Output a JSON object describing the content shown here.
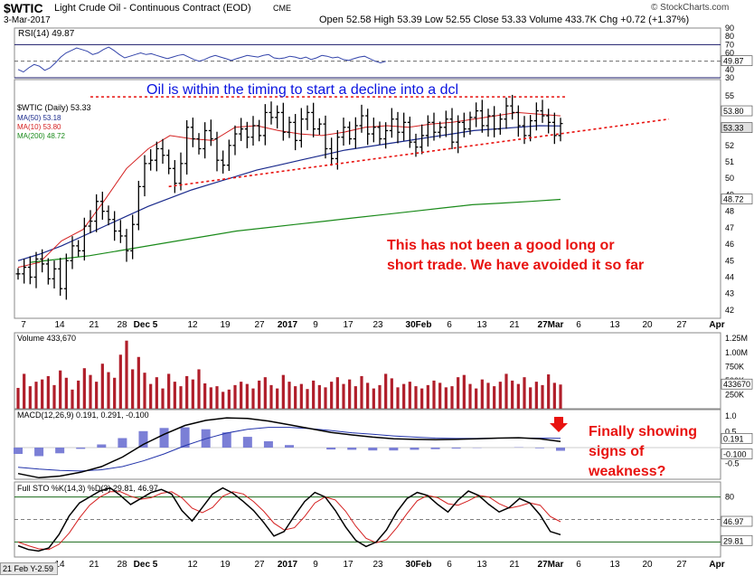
{
  "header": {
    "symbol": "$WTIC",
    "contract": "Light Crude Oil - Continuous Contract (EOD)",
    "exchange": "CME",
    "date": "3-Mar-2017",
    "ohlc": "Open 52.58   High 53.39   Low 52.55   Close 53.33   Volume 433.7K   Chg +0.72 (+1.37%)",
    "watermark": "© StockCharts.com"
  },
  "footer": {
    "readout": "21 Feb Y-2.59"
  },
  "colors": {
    "annotation_blue": "#0a14e0",
    "annotation_red": "#e8120f",
    "bars": "#000000",
    "ma50": "#1a2a8c",
    "ma10": "#d42020",
    "ma200": "#1a8a1a",
    "rsi_line": "#3344aa",
    "volume": "#b01e2a",
    "macd_hist": "#7b7fd6"
  },
  "chart_data": [
    {
      "type": "line",
      "panel": "RSI",
      "title": "RSI(14) 49.87",
      "ylim": [
        30,
        90
      ],
      "ticks": [
        90,
        80,
        70,
        60,
        50,
        40,
        30
      ],
      "levels": [
        70,
        30
      ],
      "last_label": "49.87",
      "series": [
        {
          "name": "RSI(14)",
          "values": [
            40,
            37,
            42,
            46,
            44,
            39,
            42,
            48,
            55,
            60,
            63,
            66,
            64,
            62,
            58,
            60,
            64,
            67,
            63,
            58,
            54,
            56,
            58,
            60,
            58,
            59,
            57,
            55,
            53,
            55,
            57,
            58,
            55,
            52,
            50,
            52,
            55,
            57,
            55,
            53,
            51,
            53,
            55,
            57,
            56,
            55,
            57,
            58,
            54,
            53,
            54,
            56,
            55,
            53,
            55,
            52,
            54,
            57,
            56,
            54,
            55,
            52,
            51,
            53,
            55,
            56,
            53,
            50,
            48,
            49.87
          ]
        }
      ]
    },
    {
      "type": "bar",
      "panel": "price",
      "title": "$WTIC (Daily) 53.33",
      "ylim": [
        41.5,
        56
      ],
      "ticks": [
        55,
        54,
        53,
        52,
        51,
        50,
        49,
        48,
        47,
        46,
        45,
        44,
        43,
        42
      ],
      "x_ticks": [
        "7",
        "14",
        "21",
        "28",
        "Dec 5",
        "12",
        "19",
        "27",
        "2017",
        "9",
        "17",
        "23",
        "30Feb",
        "6",
        "13",
        "21",
        "27Mar",
        "6",
        "13",
        "20",
        "27",
        "Apr"
      ],
      "last_label": "53.33",
      "ma_labels": [
        "MA(50) 53.18",
        "MA(10) 53.80",
        "MA(200) 48.72"
      ],
      "axis_value_labels": [
        "53.80",
        "53.33",
        "48.72"
      ],
      "close": [
        44.2,
        44.6,
        44.0,
        45.1,
        44.8,
        43.9,
        44.5,
        43.3,
        45.0,
        45.9,
        45.6,
        47.1,
        47.4,
        48.6,
        48.0,
        47.5,
        46.8,
        46.5,
        45.6,
        47.2,
        49.5,
        50.9,
        51.1,
        51.8,
        51.4,
        50.6,
        49.7,
        50.9,
        53.1,
        52.4,
        51.8,
        52.9,
        52.4,
        51.1,
        50.8,
        52.0,
        52.7,
        53.0,
        52.5,
        53.2,
        52.6,
        54.0,
        53.7,
        54.0,
        52.8,
        53.4,
        52.3,
        53.6,
        54.0,
        53.0,
        53.3,
        51.8,
        51.2,
        52.5,
        53.1,
        52.4,
        53.2,
        53.8,
        52.7,
        53.1,
        52.4,
        52.9,
        53.6,
        52.8,
        53.4,
        52.2,
        51.9,
        52.6,
        53.4,
        52.8,
        53.1,
        53.6,
        52.2,
        53.4,
        53.0,
        53.7,
        54.1,
        53.2,
        53.8,
        53.0,
        53.6,
        54.4,
        54.0,
        53.2,
        52.6,
        53.5,
        54.1,
        53.8,
        53.4,
        52.6,
        53.33
      ],
      "series": [
        {
          "name": "MA(50)",
          "values": [
            45.0,
            45.4,
            45.9,
            46.5,
            47.1,
            47.7,
            48.3,
            48.8,
            49.3,
            49.7,
            50.1,
            50.5,
            50.8,
            51.1,
            51.4,
            51.7,
            51.9,
            52.1,
            52.3,
            52.5,
            52.7,
            52.9,
            53.0,
            53.1,
            53.2,
            53.18
          ]
        },
        {
          "name": "MA(10)",
          "values": [
            44.6,
            44.9,
            46.2,
            46.9,
            48.7,
            50.6,
            51.8,
            52.6,
            52.4,
            52.3,
            53.1,
            53.2,
            52.9,
            52.7,
            52.6,
            52.8,
            53.1,
            53.2,
            53.1,
            53.3,
            53.4,
            53.6,
            53.8,
            54.0,
            53.9,
            53.8
          ]
        },
        {
          "name": "MA(200)",
          "values": [
            44.9,
            45.1,
            45.3,
            45.6,
            45.9,
            46.2,
            46.5,
            46.8,
            47.0,
            47.2,
            47.4,
            47.6,
            47.8,
            48.0,
            48.2,
            48.4,
            48.5,
            48.6,
            48.72
          ]
        }
      ],
      "annotations": [
        {
          "text": "Oil is within the timing to start a decline into a dcl",
          "color": "blue"
        },
        {
          "text": "This has not been a good long or",
          "color": "red"
        },
        {
          "text": "short trade.  We have avoided it so far",
          "color": "red"
        }
      ],
      "trendlines": [
        {
          "name": "resistance",
          "from": [
            12,
            54.95
          ],
          "to": [
            91,
            54.95
          ],
          "style": "dotted-red"
        },
        {
          "name": "support",
          "from": [
            25,
            49.5
          ],
          "to": [
            108,
            53.6
          ],
          "style": "dotted-red"
        }
      ]
    },
    {
      "type": "bar",
      "panel": "volume",
      "title": "Volume 433,670",
      "ylim": [
        0,
        1.25
      ],
      "ticks": [
        1.25,
        1.0,
        0.75,
        0.5,
        0.25
      ],
      "tick_labels": [
        "1.25M",
        "1.00M",
        "750K",
        "500K",
        "250K"
      ],
      "last_label": "433670",
      "values": [
        0.37,
        0.62,
        0.4,
        0.48,
        0.52,
        0.58,
        0.42,
        0.68,
        0.55,
        0.34,
        0.5,
        0.72,
        0.6,
        0.48,
        0.8,
        0.65,
        0.55,
        0.96,
        1.21,
        0.7,
        0.92,
        0.64,
        0.44,
        0.56,
        0.36,
        0.62,
        0.48,
        0.4,
        0.58,
        0.52,
        0.7,
        0.45,
        0.38,
        0.4,
        0.3,
        0.34,
        0.42,
        0.48,
        0.44,
        0.36,
        0.5,
        0.56,
        0.42,
        0.36,
        0.6,
        0.48,
        0.4,
        0.44,
        0.35,
        0.5,
        0.42,
        0.38,
        0.48,
        0.56,
        0.44,
        0.52,
        0.4,
        0.58,
        0.46,
        0.36,
        0.42,
        0.62,
        0.54,
        0.38,
        0.44,
        0.48,
        0.4,
        0.36,
        0.42,
        0.5,
        0.46,
        0.38,
        0.4,
        0.56,
        0.6,
        0.44,
        0.36,
        0.52,
        0.46,
        0.4,
        0.48,
        0.62,
        0.5,
        0.44,
        0.56,
        0.38,
        0.48,
        0.42,
        0.61,
        0.46,
        0.43
      ]
    },
    {
      "type": "line",
      "panel": "MACD",
      "title": "MACD(12,26,9) 0.191, 0.291, -0.100",
      "ylim": [
        -1.0,
        1.0
      ],
      "ticks": [
        1.0,
        0.5,
        0.0,
        -0.5
      ],
      "tick_labels": [
        "1.0",
        "0.5",
        "0.191",
        "-0.100",
        "-0.5"
      ],
      "annotation": {
        "text": "Finally showing signs of weakness?",
        "lines": [
          "Finally showing",
          "signs of",
          "weakness?"
        ],
        "color": "red",
        "marker": "down-arrow"
      },
      "series": [
        {
          "name": "MACD",
          "values": [
            -0.82,
            -0.95,
            -0.9,
            -0.78,
            -0.6,
            -0.3,
            0.1,
            0.42,
            0.7,
            0.86,
            0.94,
            0.92,
            0.84,
            0.72,
            0.6,
            0.48,
            0.4,
            0.33,
            0.28,
            0.26,
            0.25,
            0.26,
            0.28,
            0.3,
            0.31,
            0.28,
            0.191
          ]
        },
        {
          "name": "Signal",
          "values": [
            -0.62,
            -0.68,
            -0.72,
            -0.74,
            -0.7,
            -0.6,
            -0.42,
            -0.2,
            0.06,
            0.28,
            0.46,
            0.58,
            0.64,
            0.64,
            0.6,
            0.54,
            0.47,
            0.42,
            0.37,
            0.33,
            0.3,
            0.29,
            0.29,
            0.3,
            0.3,
            0.3,
            0.291
          ]
        },
        {
          "name": "Histogram",
          "values": [
            -0.2,
            -0.27,
            -0.18,
            -0.04,
            0.1,
            0.3,
            0.52,
            0.62,
            0.64,
            0.58,
            0.48,
            0.34,
            0.2,
            0.08,
            0.0,
            -0.06,
            -0.07,
            -0.09,
            -0.09,
            -0.07,
            -0.05,
            -0.03,
            -0.01,
            0.0,
            0.01,
            -0.02,
            -0.1
          ]
        }
      ]
    },
    {
      "type": "line",
      "panel": "STO",
      "title": "Full STO %K(14,3) %D(3) 29.81, 46.97",
      "ylim": [
        0,
        100
      ],
      "ticks": [
        80,
        50,
        20
      ],
      "levels": [
        80,
        20
      ],
      "last_labels": [
        "46.97",
        "29.81"
      ],
      "series": [
        {
          "name": "%K",
          "values": [
            15,
            10,
            8,
            12,
            30,
            55,
            72,
            80,
            88,
            92,
            82,
            70,
            78,
            86,
            90,
            84,
            62,
            48,
            66,
            84,
            92,
            85,
            74,
            62,
            46,
            28,
            34,
            55,
            74,
            86,
            80,
            62,
            40,
            22,
            14,
            20,
            36,
            60,
            78,
            86,
            82,
            70,
            60,
            76,
            88,
            82,
            70,
            60,
            66,
            78,
            72,
            56,
            34,
            29.81
          ]
        },
        {
          "name": "%D",
          "values": [
            20,
            15,
            11,
            10,
            17,
            32,
            52,
            69,
            80,
            87,
            87,
            81,
            77,
            79,
            85,
            87,
            79,
            65,
            59,
            66,
            81,
            87,
            84,
            74,
            61,
            45,
            36,
            39,
            54,
            72,
            80,
            76,
            61,
            41,
            25,
            19,
            23,
            39,
            58,
            75,
            82,
            79,
            71,
            69,
            75,
            82,
            80,
            71,
            65,
            68,
            72,
            69,
            54,
            46.97
          ]
        }
      ]
    }
  ]
}
